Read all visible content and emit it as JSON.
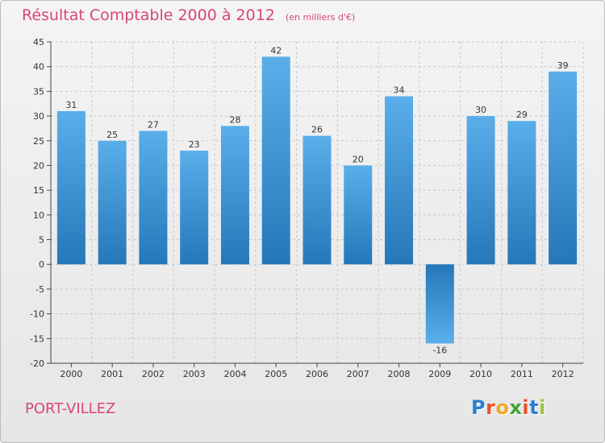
{
  "title": "Résultat Comptable 2000 à 2012",
  "unit": "(en milliers d'€)",
  "town": "PORT-VILLEZ",
  "brand": {
    "letters": [
      "P",
      "r",
      "o",
      "x",
      "i",
      "t",
      "i"
    ],
    "colors": [
      "#2b7fd0",
      "#e8532b",
      "#f5a623",
      "#3fa535",
      "#e8532b",
      "#2b7fd0",
      "#9bc43a"
    ]
  },
  "colors": {
    "bar_light": "#5aaeea",
    "bar_dark": "#2677b8",
    "title": "#d8457d"
  },
  "chart_data": {
    "type": "bar",
    "title": "Résultat Comptable 2000 à 2012",
    "xlabel": "",
    "ylabel": "en milliers d'€",
    "categories": [
      "2000",
      "2001",
      "2002",
      "2003",
      "2004",
      "2005",
      "2006",
      "2007",
      "2008",
      "2009",
      "2010",
      "2011",
      "2012"
    ],
    "values": [
      31,
      25,
      27,
      23,
      28,
      42,
      26,
      20,
      34,
      -16,
      30,
      29,
      39
    ],
    "ylim": [
      -20,
      45
    ],
    "yticks": [
      "-20",
      "-15",
      "-10",
      "-5",
      "0",
      "5",
      "10",
      "15",
      "20",
      "25",
      "30",
      "35",
      "40",
      "45"
    ],
    "grid": true
  }
}
